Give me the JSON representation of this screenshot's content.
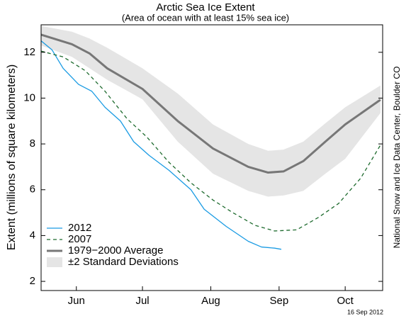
{
  "chart_data": {
    "type": "line",
    "title": "Arctic Sea Ice Extent",
    "subtitle": "(Area of ocean with at least 15% sea ice)",
    "ylabel": "Extent (millions of square kilometers)",
    "source": "National Snow and Ice Data Center, Boulder CO",
    "date": "16 Sep 2012",
    "xlim": [
      150,
      305
    ],
    "ylim": [
      1.6,
      13.2
    ],
    "yticks": [
      2,
      4,
      6,
      8,
      10,
      12
    ],
    "xticks": [
      {
        "value": 166,
        "label": "Jun"
      },
      {
        "value": 196,
        "label": "Jul"
      },
      {
        "value": 227,
        "label": "Aug"
      },
      {
        "value": 258,
        "label": "Sep"
      },
      {
        "value": 288,
        "label": "Oct"
      }
    ],
    "legend": "lower left",
    "band": {
      "name": "±2 Standard Deviations",
      "color": "#e5e5e5",
      "x": [
        150,
        164,
        172,
        180,
        196,
        212,
        228,
        244,
        253,
        260,
        269,
        279,
        288,
        304
      ],
      "upper": [
        13.15,
        12.9,
        12.6,
        12.2,
        11.3,
        10.2,
        8.85,
        8.0,
        7.7,
        7.75,
        8.1,
        8.9,
        9.6,
        10.55
      ],
      "lower": [
        12.3,
        11.8,
        11.3,
        10.8,
        9.95,
        8.1,
        6.7,
        5.95,
        5.7,
        5.75,
        5.95,
        6.7,
        7.35,
        9.35
      ]
    },
    "series": [
      {
        "name": "2012",
        "color": "#1a9be3",
        "width": 1.3,
        "dash": "none",
        "x": [
          150,
          155,
          160,
          167,
          173,
          179,
          186,
          192,
          199,
          208,
          218,
          224,
          234,
          244,
          250,
          256,
          259
        ],
        "values": [
          12.5,
          12.1,
          11.3,
          10.6,
          10.3,
          9.6,
          9.0,
          8.1,
          7.5,
          6.85,
          6.0,
          5.15,
          4.4,
          3.75,
          3.5,
          3.45,
          3.4
        ]
      },
      {
        "name": "2007",
        "color": "#1e6b2e",
        "width": 1.3,
        "dash": "5 4",
        "x": [
          150,
          160,
          170,
          179,
          189,
          198,
          208,
          218,
          228,
          237,
          247,
          256,
          266,
          276,
          285,
          295,
          304
        ],
        "values": [
          12.05,
          11.8,
          11.2,
          10.3,
          9.1,
          8.3,
          7.2,
          6.3,
          5.55,
          5.0,
          4.45,
          4.2,
          4.25,
          4.8,
          5.4,
          6.5,
          7.95
        ]
      },
      {
        "name": "1979−2000 Average",
        "color": "#777777",
        "width": 3,
        "dash": "none",
        "x": [
          150,
          164,
          172,
          180,
          196,
          212,
          228,
          244,
          253,
          260,
          269,
          279,
          288,
          304
        ],
        "values": [
          12.77,
          12.35,
          11.95,
          11.3,
          10.4,
          9.0,
          7.8,
          7.0,
          6.75,
          6.8,
          7.25,
          8.1,
          8.85,
          9.93
        ]
      }
    ]
  }
}
